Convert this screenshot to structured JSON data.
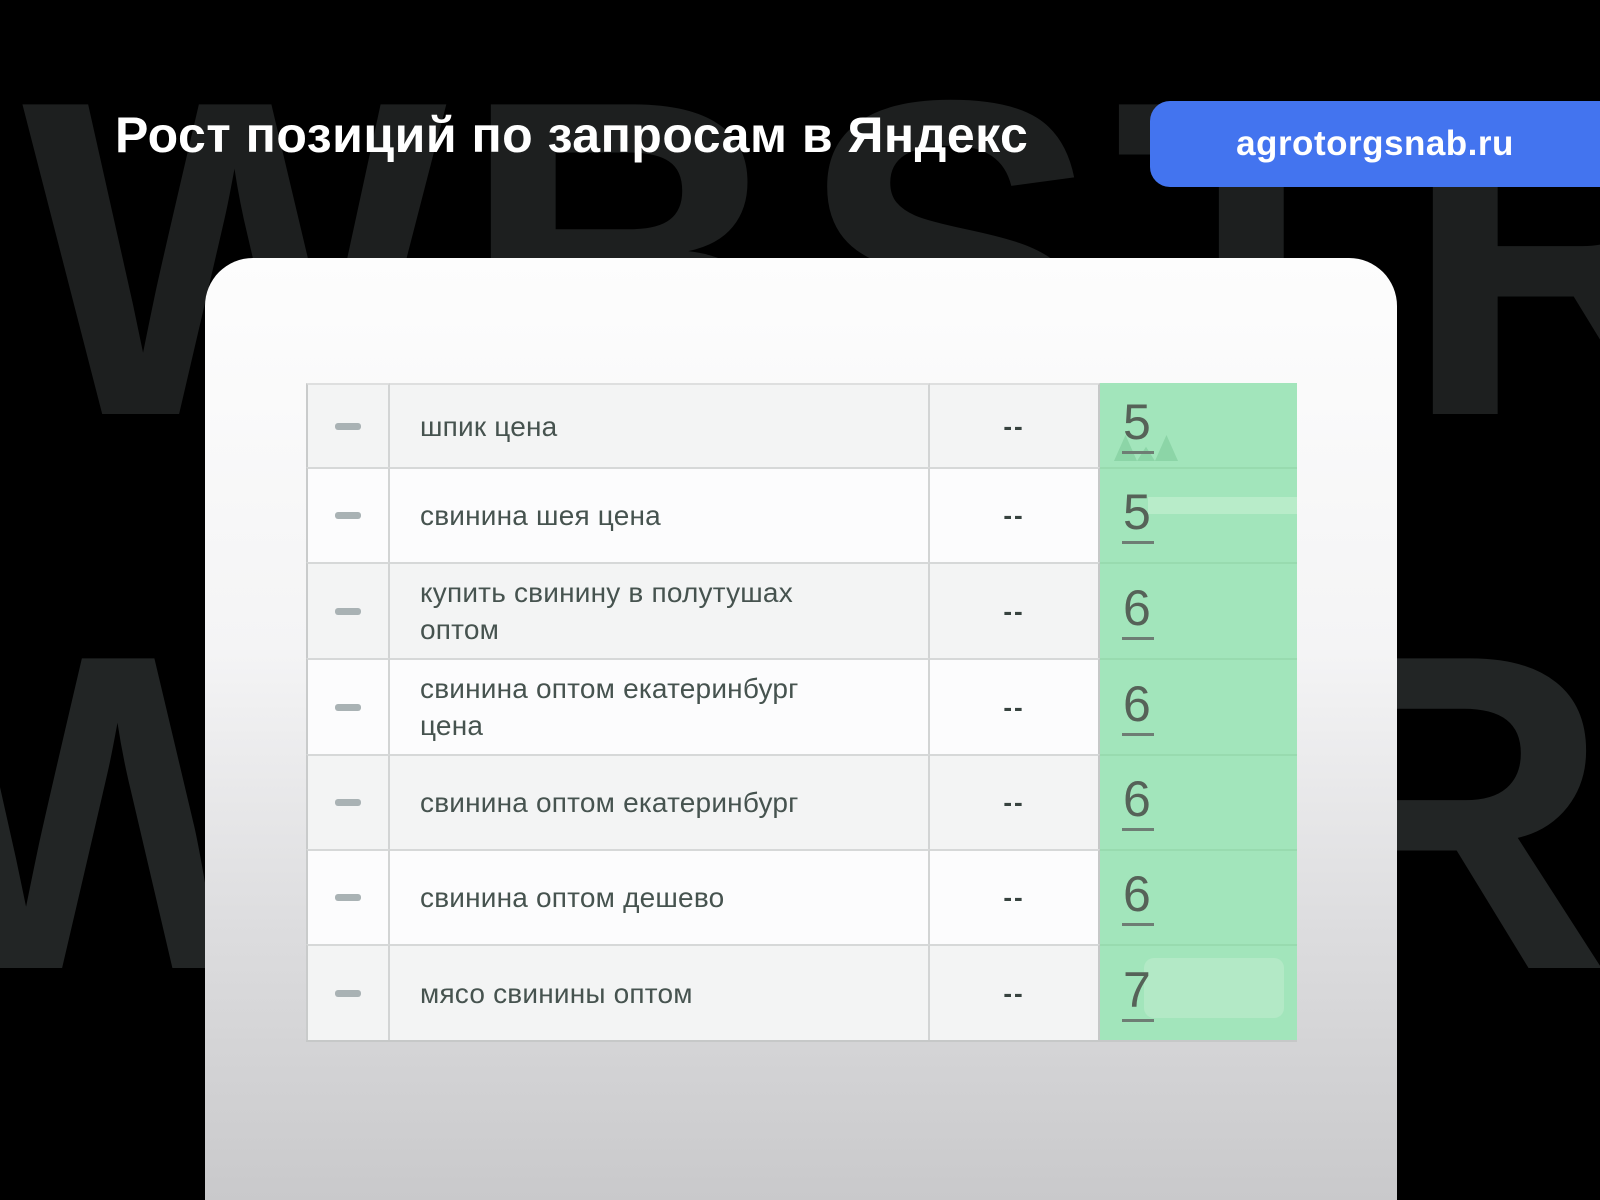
{
  "header": {
    "title": "Рост позиций по запросам в Яндекс",
    "badge_label": "agrotorgsnab.ru"
  },
  "watermark": {
    "line1": "WBSTR",
    "line2": "WBSTR"
  },
  "colors": {
    "background": "#000000",
    "accent_blue": "#4374ef",
    "highlight_green": "#a2e5bb",
    "card_top": "#fdfdfd",
    "card_bottom": "#c9c9cb"
  },
  "table": {
    "rows": [
      {
        "query": "шпик цена",
        "change": "--",
        "position": "5"
      },
      {
        "query": "свинина шея цена",
        "change": "--",
        "position": "5"
      },
      {
        "query": "купить свинину в полутушах оптом",
        "change": "--",
        "position": "6"
      },
      {
        "query": "свинина оптом екатеринбург цена",
        "change": "--",
        "position": "6"
      },
      {
        "query": "свинина оптом екатеринбург",
        "change": "--",
        "position": "6"
      },
      {
        "query": "свинина оптом дешево",
        "change": "--",
        "position": "6"
      },
      {
        "query": "мясо свинины оптом",
        "change": "--",
        "position": "7"
      }
    ]
  }
}
